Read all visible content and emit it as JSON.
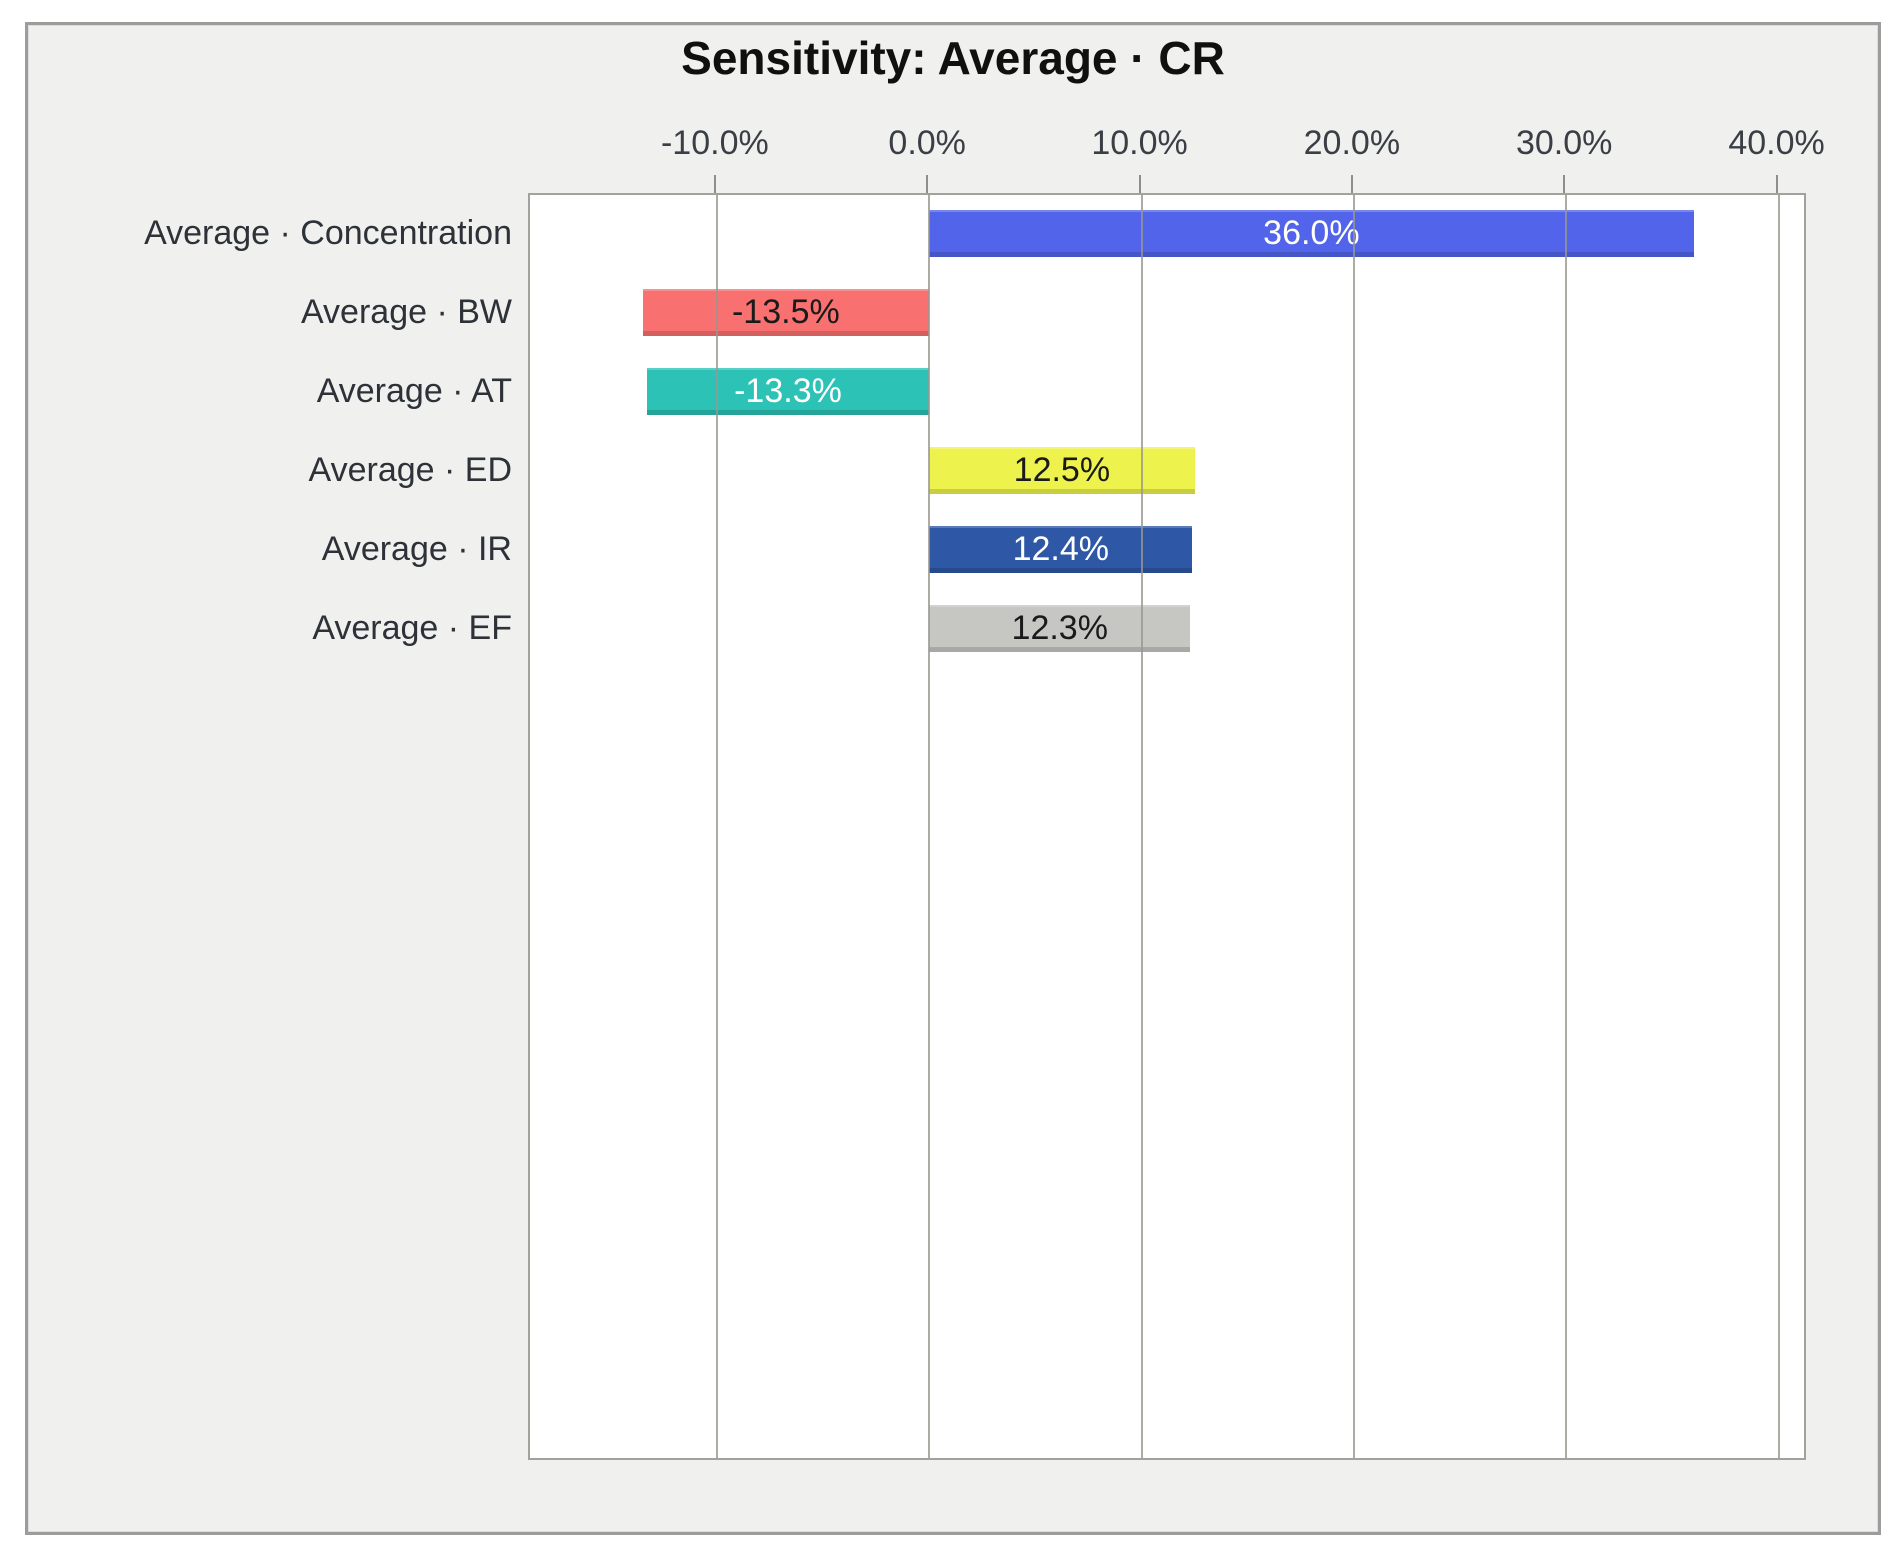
{
  "chart_data": {
    "type": "bar",
    "orientation": "horizontal",
    "title": "Sensitivity: Average · CR",
    "categories": [
      "Average · Concentration",
      "Average · BW",
      "Average · AT",
      "Average · ED",
      "Average · IR",
      "Average · EF"
    ],
    "values": [
      36.0,
      -13.5,
      -13.3,
      12.5,
      12.4,
      12.3
    ],
    "value_labels": [
      "36.0%",
      "-13.5%",
      "-13.3%",
      "12.5%",
      "12.4%",
      "12.3%"
    ],
    "bar_colors": [
      "#5265ea",
      "#f87070",
      "#2cc2b5",
      "#edf24c",
      "#2e57a5",
      "#c6c6c2"
    ],
    "value_label_colors": [
      "#ffffff",
      "#1a1a1a",
      "#ffffff",
      "#1a1a1a",
      "#ffffff",
      "#1a1a1a"
    ],
    "x_ticks": [
      -10,
      0,
      10,
      20,
      30,
      40
    ],
    "x_tick_labels": [
      "-10.0%",
      "0.0%",
      "10.0%",
      "20.0%",
      "30.0%",
      "40.0%"
    ],
    "xlim": [
      -18.8,
      41.2
    ],
    "grid": "vertical",
    "legend": "none",
    "plot_background": "#ffffff",
    "frame_background": "#f0f0ef"
  }
}
